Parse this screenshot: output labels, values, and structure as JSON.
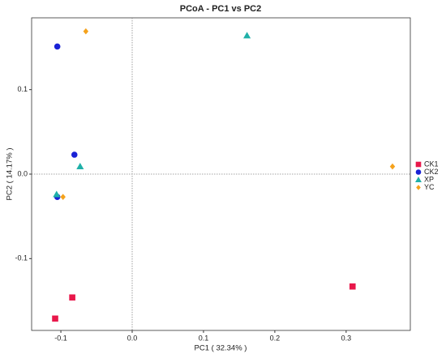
{
  "chart_data": {
    "type": "scatter",
    "title": "PCoA - PC1 vs PC2",
    "x_label": "PC1 ( 32.34% )",
    "y_label": "PC2 ( 14.17% )",
    "xlim": [
      -0.141,
      0.39
    ],
    "ylim": [
      -0.185,
      0.185
    ],
    "xticks": [
      -0.1,
      {
        "value": 0,
        "label": "0.0"
      },
      0.1,
      0.2,
      0.3
    ],
    "yticks": [
      -0.1,
      {
        "value": 0,
        "label": "0.0"
      },
      0.1
    ],
    "zero_lines": true,
    "legend": "right",
    "series": [
      {
        "name": "CK1",
        "color": "#e8174a",
        "marker": "square",
        "x": [
          -0.108,
          -0.084,
          0.309
        ],
        "values": [
          -0.171,
          -0.146,
          -0.133
        ]
      },
      {
        "name": "CK2",
        "color": "#1a22d6",
        "marker": "circle",
        "x": [
          -0.105,
          -0.081,
          -0.105
        ],
        "values": [
          0.151,
          0.023,
          -0.027
        ]
      },
      {
        "name": "XP",
        "color": "#1fb0a8",
        "marker": "triangle",
        "x": [
          0.161,
          -0.073,
          -0.106
        ],
        "values": [
          0.164,
          0.009,
          -0.024
        ]
      },
      {
        "name": "YC",
        "color": "#f5a21c",
        "marker": "diamond",
        "x": [
          -0.065,
          -0.097,
          0.365
        ],
        "values": [
          0.169,
          -0.027,
          0.009
        ]
      }
    ]
  }
}
